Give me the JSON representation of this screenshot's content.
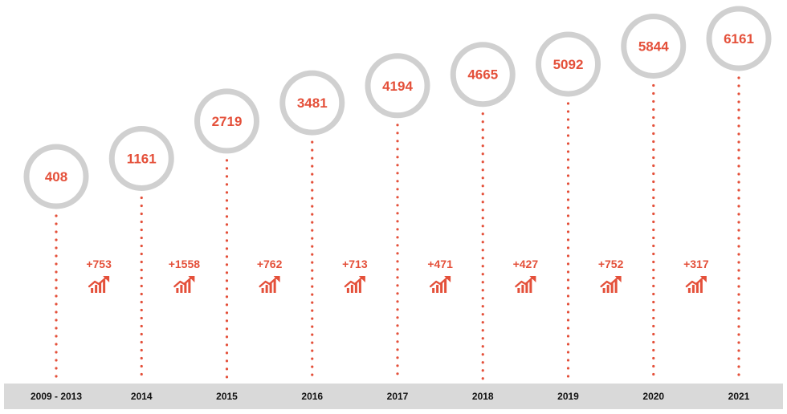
{
  "chart_data": {
    "type": "timeline",
    "categories": [
      "2009 - 2013",
      "2014",
      "2015",
      "2016",
      "2017",
      "2018",
      "2019",
      "2020",
      "2021"
    ],
    "values": [
      408,
      1161,
      2719,
      3481,
      4194,
      4665,
      5092,
      5844,
      6161
    ],
    "increments": [
      "+753",
      "+1558",
      "+762",
      "+713",
      "+471",
      "+427",
      "+752",
      "+317"
    ],
    "title": "",
    "xlabel": "",
    "ylabel": ""
  },
  "colors": {
    "accent": "#e4503a",
    "circle": "#d0d0d0",
    "axis_band": "#d9d9d9",
    "year_text": "#111111"
  },
  "icons": {
    "increment": "growth-chart-icon"
  }
}
